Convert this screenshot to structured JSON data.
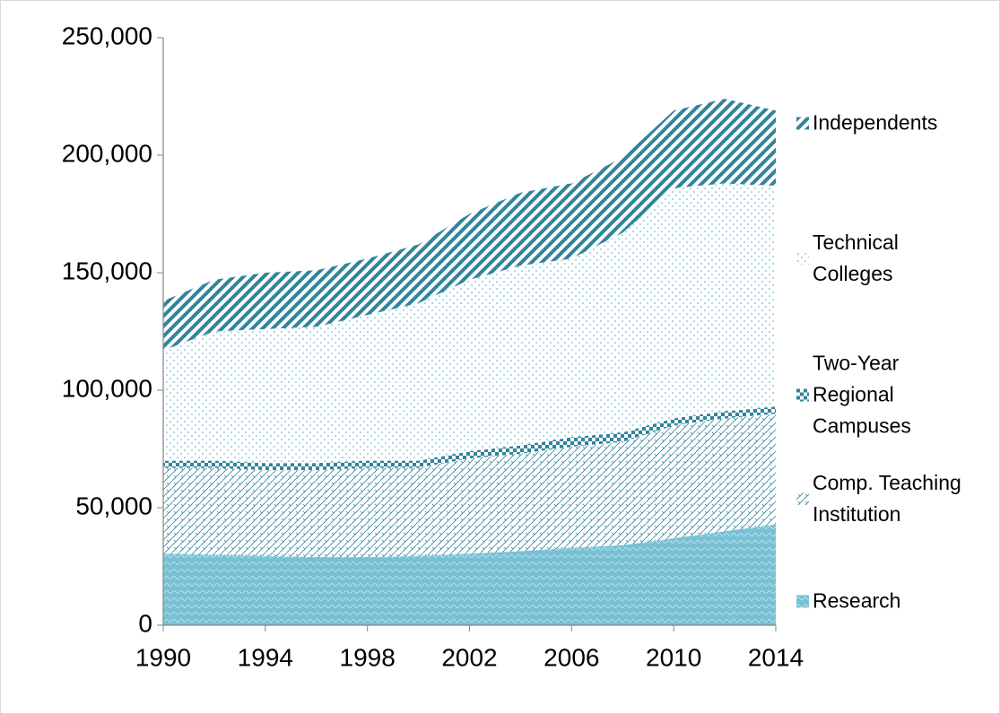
{
  "chart_data": {
    "type": "stacked-area",
    "x": [
      1990,
      1992,
      1994,
      1996,
      1998,
      2000,
      2002,
      2004,
      2006,
      2008,
      2010,
      2012,
      2014
    ],
    "series": [
      {
        "name": "Research",
        "color": "#4bacc6",
        "values": [
          30500,
          30000,
          29500,
          29000,
          29000,
          29500,
          30500,
          31500,
          33000,
          34000,
          37000,
          40000,
          43000
        ]
      },
      {
        "name": "Comp. Teaching Institution",
        "color": "#31849b",
        "values": [
          36500,
          37000,
          36500,
          37000,
          38000,
          37500,
          40500,
          41500,
          43000,
          44000,
          48000,
          48000,
          47000
        ]
      },
      {
        "name": "Two-Year Regional Campuses",
        "color": "#31849b",
        "values": [
          3000,
          3000,
          3000,
          3000,
          3000,
          3000,
          3000,
          3500,
          4000,
          4000,
          3000,
          3000,
          3000
        ]
      },
      {
        "name": "Technical Colleges",
        "color": "#4bacc6",
        "values": [
          47000,
          55000,
          57000,
          58000,
          62000,
          67000,
          73000,
          76500,
          76000,
          85000,
          98000,
          97000,
          94000
        ]
      },
      {
        "name": "Independents",
        "color": "#31849b",
        "values": [
          21000,
          22000,
          24000,
          24000,
          24000,
          25000,
          28000,
          31000,
          32000,
          32000,
          33000,
          36000,
          32000
        ]
      }
    ],
    "xlim": [
      1990,
      2014
    ],
    "xticks": [
      1990,
      1994,
      1998,
      2002,
      2006,
      2010,
      2014
    ],
    "ylim": [
      0,
      250000
    ],
    "yticks": [
      0,
      {
        "value": 50000,
        "label": "50,000"
      },
      {
        "value": 100000,
        "label": "100,000"
      },
      {
        "value": 150000,
        "label": "150,000"
      },
      {
        "value": 200000,
        "label": "200,000"
      },
      {
        "value": 250000,
        "label": "250,000"
      }
    ],
    "legend": "right"
  }
}
